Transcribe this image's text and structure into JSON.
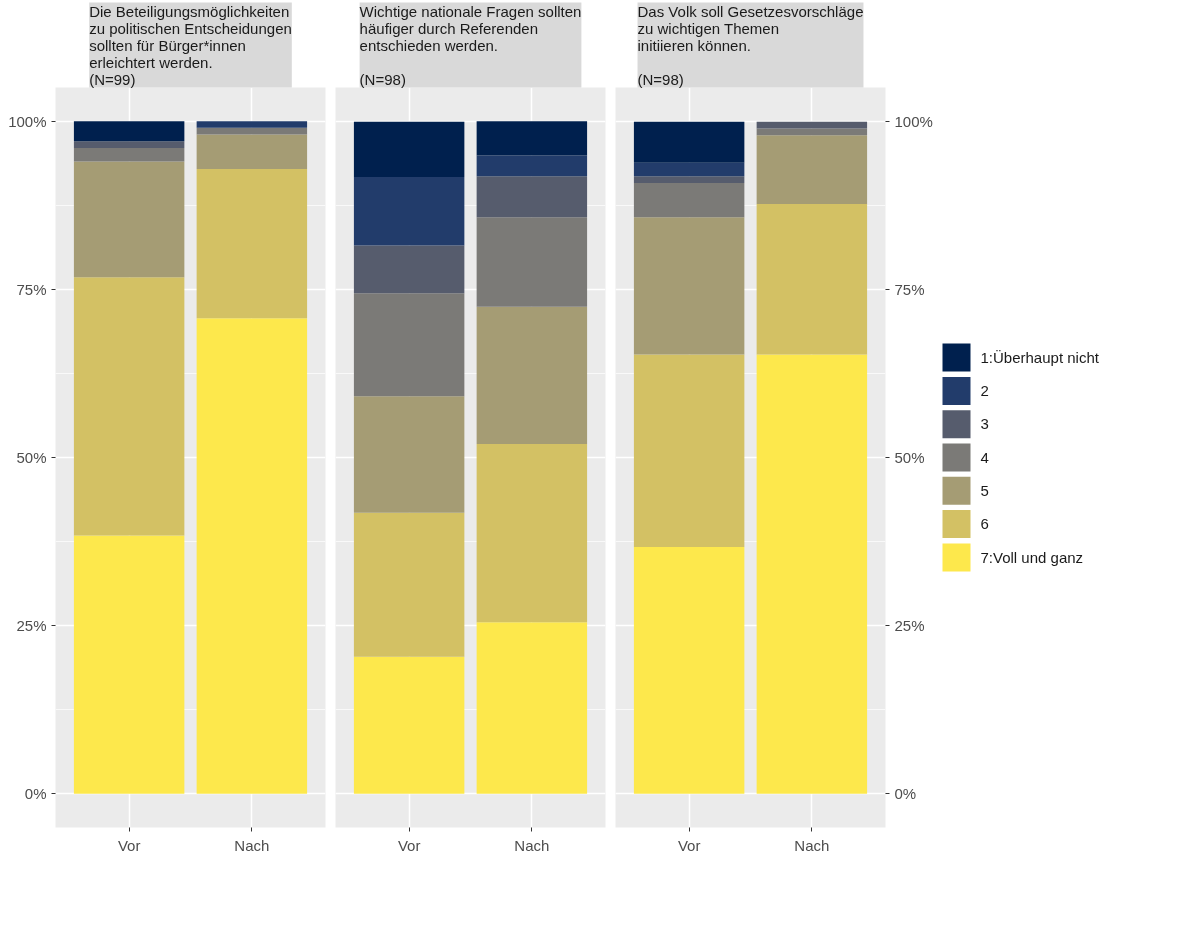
{
  "chart_data": [
    {
      "type": "bar",
      "stacked": true,
      "title": "Die Beteiligungsmöglichkeiten\nzu politischen Entscheidungen\nsollten für Bürger*innen\nerleichtert werden.\n(N=99)",
      "categories": [
        "Vor",
        "Nach"
      ],
      "ylim": [
        -5,
        105
      ],
      "yticks": [
        {
          "value": 0,
          "label": "0%"
        },
        {
          "value": 25,
          "label": "25%"
        },
        {
          "value": 50,
          "label": "50%"
        },
        {
          "value": 75,
          "label": "75%"
        },
        {
          "value": 100,
          "label": "100%"
        }
      ],
      "grid": true,
      "series": [
        {
          "color": "#fde84c",
          "values": [
            38.4,
            70.7
          ]
        },
        {
          "color": "#d3c164",
          "values": [
            38.4,
            22.2
          ]
        },
        {
          "color": "#a59c74",
          "values": [
            17.2,
            5.1
          ]
        },
        {
          "color": "#7b7a77",
          "values": [
            2.0,
            1.0
          ]
        },
        {
          "color": "#565c6d",
          "values": [
            1.0,
            0
          ]
        },
        {
          "color": "#223c6b",
          "values": [
            0,
            1.0
          ]
        },
        {
          "color": "#00204e",
          "values": [
            3.0,
            0
          ]
        }
      ]
    },
    {
      "type": "bar",
      "stacked": true,
      "title": "Wichtige nationale Fragen sollten\nhäufiger durch  Referenden\nentschieden werden.\n\n(N=98)",
      "categories": [
        "Vor",
        "Nach"
      ],
      "ylim": [
        -5,
        105
      ],
      "yticks": [
        0,
        25,
        50,
        75,
        100
      ],
      "grid": true,
      "tick_labels": "x",
      "series": [
        {
          "color": "#fde84c",
          "values": [
            20.4,
            25.5
          ]
        },
        {
          "color": "#d3c164",
          "values": [
            21.4,
            26.5
          ]
        },
        {
          "color": "#a59c74",
          "values": [
            17.3,
            20.4
          ]
        },
        {
          "color": "#7b7a77",
          "values": [
            15.3,
            13.3
          ]
        },
        {
          "color": "#565c6d",
          "values": [
            7.1,
            6.1
          ]
        },
        {
          "color": "#223c6b",
          "values": [
            10.2,
            3.1
          ]
        },
        {
          "color": "#00204e",
          "values": [
            8.2,
            5.1
          ]
        }
      ]
    },
    {
      "type": "bar",
      "stacked": true,
      "title": "Das Volk soll Gesetzesvorschläge\nzu wichtigen Themen\ninitiieren können.\n\n(N=98)",
      "categories": [
        "Vor",
        "Nach"
      ],
      "ylim": [
        -5,
        105
      ],
      "yticks": [
        {
          "value": 0,
          "label": "0%"
        },
        {
          "value": 25,
          "label": "25%"
        },
        {
          "value": 50,
          "label": "50%"
        },
        {
          "value": 75,
          "label": "75%"
        },
        {
          "value": 100,
          "label": "100%"
        }
      ],
      "grid": true,
      "legend": "right",
      "series": [
        {
          "name": "7:Voll und ganz",
          "color": "#fde84c",
          "values": [
            36.7,
            65.3
          ]
        },
        {
          "name": "6",
          "color": "#d3c164",
          "values": [
            28.6,
            22.4
          ]
        },
        {
          "name": "5",
          "color": "#a59c74",
          "values": [
            20.4,
            10.2
          ]
        },
        {
          "name": "4",
          "color": "#7b7a77",
          "values": [
            5.1,
            1.0
          ]
        },
        {
          "name": "3",
          "color": "#565c6d",
          "values": [
            1.0,
            1.0
          ]
        },
        {
          "name": "2",
          "color": "#223c6b",
          "values": [
            2.0,
            0
          ]
        },
        {
          "name": "1:Überhaupt nicht",
          "color": "#00204e",
          "values": [
            6.1,
            0
          ]
        }
      ]
    }
  ]
}
